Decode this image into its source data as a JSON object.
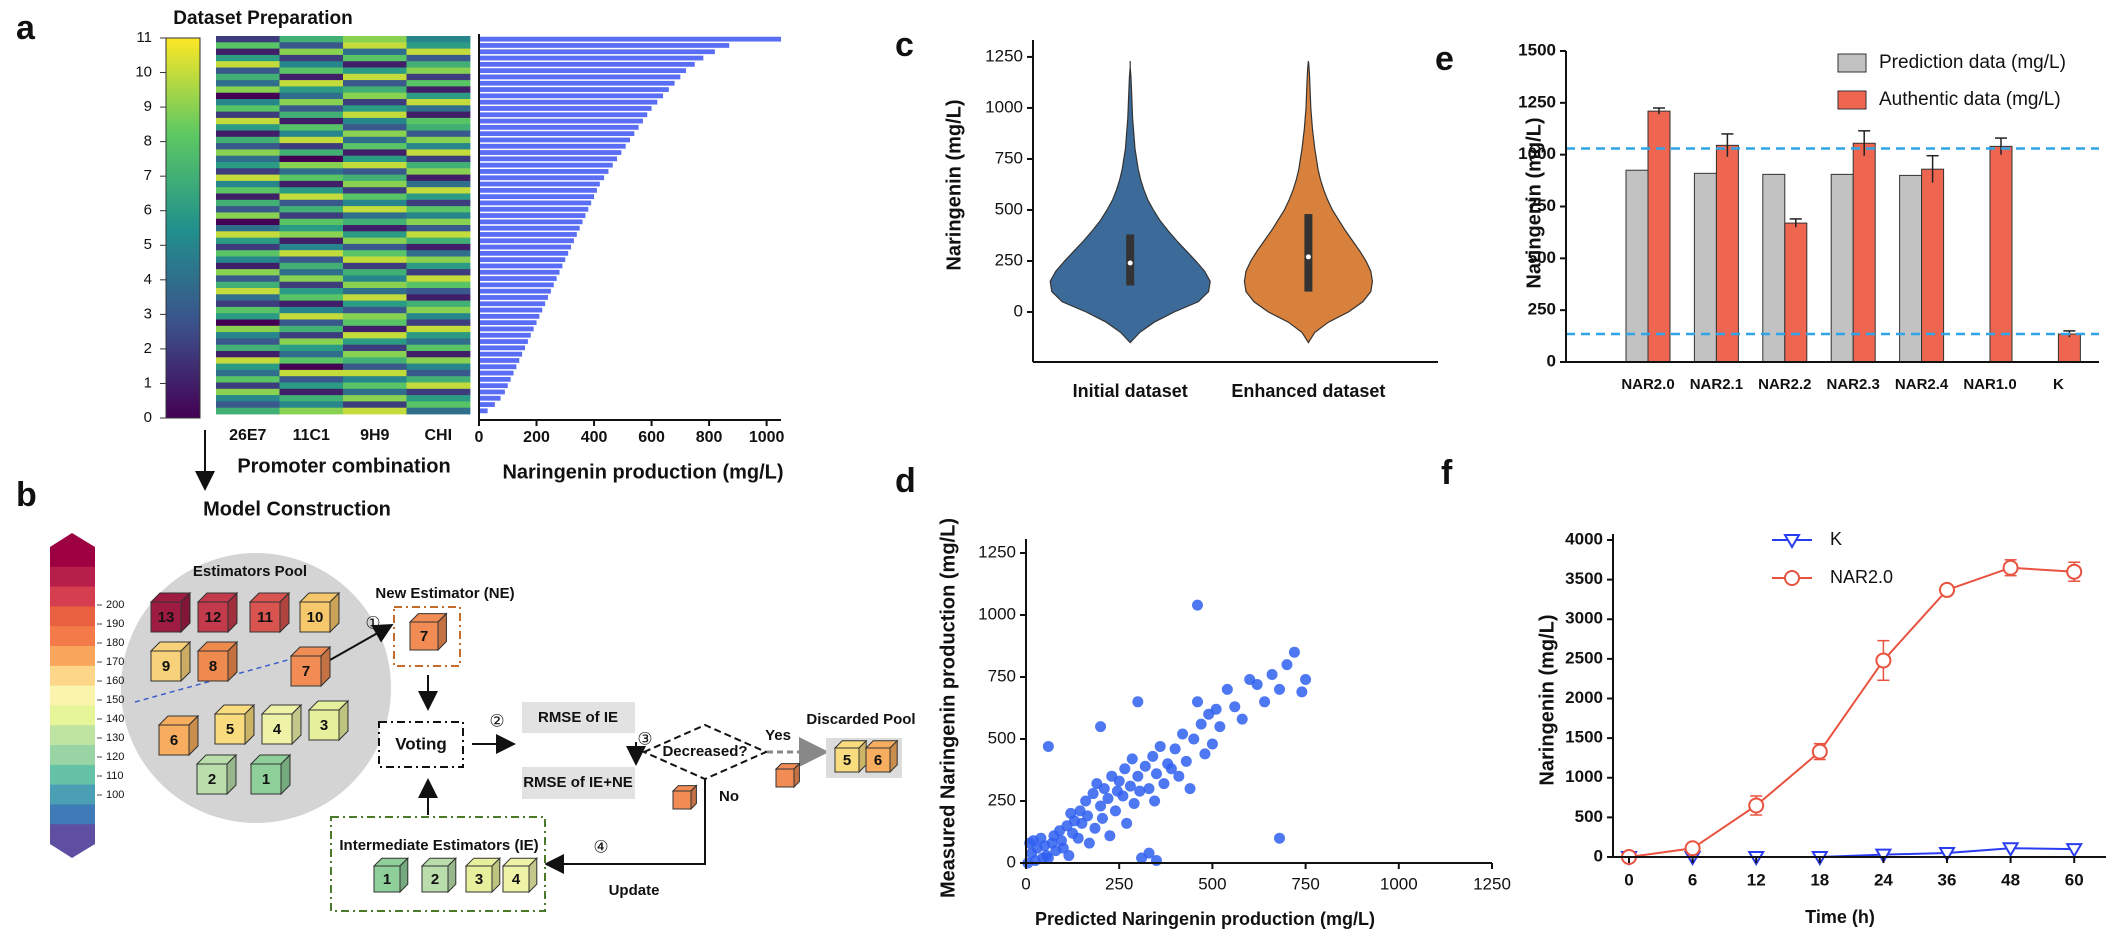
{
  "chart_data": [
    {
      "type": "heatmap",
      "panel": "a",
      "title": "Dataset Preparation",
      "xlabel": "Promoter combination",
      "columns": [
        "26E7",
        "11C1",
        "9H9",
        "CHI"
      ],
      "colormap": [
        "#440154",
        "#3b528b",
        "#21918c",
        "#5ec962",
        "#fde725"
      ],
      "clim": [
        0,
        11
      ],
      "cbar_ticks": [
        0,
        1,
        2,
        3,
        4,
        5,
        6,
        7,
        8,
        9,
        10,
        11
      ],
      "rows": [
        [
          2,
          7,
          9,
          5
        ],
        [
          8,
          3,
          10,
          6
        ],
        [
          1,
          9,
          4,
          10
        ],
        [
          6,
          2,
          8,
          3
        ],
        [
          10,
          5,
          1,
          7
        ],
        [
          3,
          8,
          6,
          9
        ],
        [
          7,
          1,
          10,
          2
        ],
        [
          4,
          10,
          3,
          8
        ],
        [
          9,
          6,
          7,
          1
        ],
        [
          0,
          4,
          9,
          6
        ],
        [
          5,
          9,
          2,
          10
        ],
        [
          8,
          3,
          6,
          4
        ],
        [
          2,
          7,
          10,
          1
        ],
        [
          10,
          1,
          5,
          8
        ],
        [
          6,
          8,
          3,
          7
        ],
        [
          1,
          5,
          9,
          3
        ],
        [
          7,
          10,
          4,
          9
        ],
        [
          3,
          2,
          8,
          5
        ],
        [
          9,
          7,
          1,
          10
        ],
        [
          4,
          0,
          6,
          2
        ],
        [
          6,
          9,
          10,
          7
        ],
        [
          2,
          4,
          3,
          9
        ],
        [
          10,
          8,
          7,
          1
        ],
        [
          5,
          1,
          9,
          4
        ],
        [
          8,
          6,
          2,
          10
        ],
        [
          1,
          10,
          8,
          6
        ],
        [
          7,
          3,
          5,
          2
        ],
        [
          3,
          7,
          10,
          8
        ],
        [
          9,
          2,
          4,
          5
        ],
        [
          0,
          8,
          7,
          9
        ],
        [
          4,
          6,
          1,
          3
        ],
        [
          10,
          9,
          6,
          10
        ],
        [
          6,
          1,
          9,
          7
        ],
        [
          2,
          5,
          3,
          1
        ],
        [
          8,
          10,
          8,
          4
        ],
        [
          5,
          3,
          10,
          9
        ],
        [
          1,
          7,
          2,
          6
        ],
        [
          9,
          4,
          7,
          2
        ],
        [
          3,
          9,
          5,
          10
        ],
        [
          7,
          2,
          9,
          8
        ],
        [
          10,
          6,
          4,
          3
        ],
        [
          4,
          8,
          10,
          1
        ],
        [
          2,
          1,
          6,
          7
        ],
        [
          8,
          5,
          3,
          9
        ],
        [
          6,
          10,
          9,
          5
        ],
        [
          0,
          3,
          8,
          2
        ],
        [
          9,
          7,
          1,
          10
        ],
        [
          5,
          2,
          10,
          6
        ],
        [
          3,
          9,
          6,
          4
        ],
        [
          7,
          6,
          2,
          8
        ],
        [
          1,
          4,
          9,
          1
        ],
        [
          10,
          8,
          7,
          9
        ],
        [
          6,
          0,
          3,
          5
        ],
        [
          4,
          10,
          10,
          3
        ],
        [
          8,
          3,
          5,
          7
        ],
        [
          2,
          6,
          8,
          10
        ],
        [
          9,
          1,
          4,
          2
        ],
        [
          5,
          7,
          9,
          6
        ],
        [
          3,
          5,
          2,
          8
        ],
        [
          7,
          9,
          10,
          4
        ]
      ]
    },
    {
      "type": "bar",
      "orientation": "horizontal",
      "xlabel": "Naringenin production (mg/L)",
      "color": "#5a6ef5",
      "xlim": [
        0,
        1050
      ],
      "xticks": [
        0,
        200,
        400,
        600,
        800,
        1000
      ],
      "values": [
        1050,
        870,
        820,
        780,
        750,
        720,
        700,
        680,
        660,
        640,
        620,
        600,
        585,
        570,
        555,
        540,
        525,
        510,
        495,
        480,
        465,
        450,
        435,
        420,
        410,
        400,
        390,
        380,
        370,
        360,
        350,
        340,
        330,
        320,
        310,
        300,
        290,
        280,
        270,
        260,
        250,
        240,
        230,
        220,
        210,
        200,
        190,
        180,
        170,
        160,
        150,
        140,
        130,
        120,
        110,
        100,
        90,
        75,
        55,
        30
      ]
    },
    {
      "type": "violin",
      "panel": "c",
      "ylabel": "Naringenin (mg/L)",
      "categories": [
        "Initial dataset",
        "Enhanced dataset"
      ],
      "ylim": [
        -245,
        1333
      ],
      "yticks": [
        0,
        250,
        500,
        750,
        1000,
        1250
      ],
      "density_y": [
        -150,
        -100,
        -50,
        0,
        50,
        100,
        150,
        200,
        250,
        300,
        350,
        400,
        450,
        500,
        550,
        600,
        650,
        700,
        750,
        800,
        850,
        900,
        950,
        1000,
        1050,
        1100,
        1150,
        1200,
        1230
      ],
      "violins": [
        {
          "color": "#3d6b99",
          "q1": 130,
          "median": 240,
          "q3": 380,
          "density": [
            0,
            0.12,
            0.3,
            0.55,
            0.85,
            0.98,
            1,
            0.93,
            0.82,
            0.7,
            0.58,
            0.47,
            0.37,
            0.29,
            0.22,
            0.17,
            0.13,
            0.1,
            0.08,
            0.06,
            0.05,
            0.04,
            0.03,
            0.025,
            0.02,
            0.015,
            0.01,
            0,
            0
          ]
        },
        {
          "color": "#d8813c",
          "q1": 100,
          "median": 270,
          "q3": 480,
          "density": [
            0,
            0.08,
            0.25,
            0.5,
            0.68,
            0.78,
            0.8,
            0.78,
            0.72,
            0.64,
            0.55,
            0.46,
            0.38,
            0.3,
            0.24,
            0.19,
            0.15,
            0.12,
            0.1,
            0.08,
            0.065,
            0.05,
            0.04,
            0.03,
            0.025,
            0.02,
            0.015,
            0.008,
            0
          ]
        }
      ]
    },
    {
      "type": "grouped-bar",
      "panel": "e",
      "ylabel": "Naringenin (mg/L)",
      "legend": "top-right",
      "categories": [
        "NAR2.0",
        "NAR2.1",
        "NAR2.2",
        "NAR2.3",
        "NAR2.4",
        "NAR1.0",
        "K"
      ],
      "ylim": [
        0,
        1500
      ],
      "yticks": [
        0,
        250,
        500,
        750,
        1000,
        1250,
        1500
      ],
      "hlines": [
        1030,
        135
      ],
      "hline_color": "#2fa4e7",
      "series": [
        {
          "name": "Prediction data (mg/L)",
          "color": "#c2c2c2",
          "values": [
            925,
            910,
            905,
            905,
            900,
            null,
            null
          ]
        },
        {
          "name": "Authentic data (mg/L)",
          "color": "#ee6550",
          "values": [
            1210,
            1045,
            670,
            1055,
            930,
            1040,
            135
          ],
          "errors": [
            15,
            55,
            20,
            60,
            65,
            40,
            15
          ]
        }
      ]
    },
    {
      "type": "scatter",
      "panel": "d",
      "xlabel": "Predicted Naringenin production (mg/L)",
      "ylabel": "Measured Naringenin production (mg/L)",
      "color": "#2f5ff0",
      "xlim": [
        0,
        1250
      ],
      "ylim": [
        0,
        1250
      ],
      "xticks": [
        0,
        250,
        500,
        750,
        1000,
        1250
      ],
      "yticks": [
        0,
        250,
        500,
        750,
        1000,
        1250
      ],
      "x": [
        5,
        10,
        15,
        20,
        25,
        30,
        40,
        45,
        50,
        55,
        60,
        70,
        75,
        80,
        90,
        95,
        100,
        110,
        115,
        120,
        125,
        130,
        140,
        145,
        150,
        160,
        165,
        170,
        180,
        185,
        190,
        200,
        205,
        210,
        220,
        225,
        230,
        240,
        245,
        250,
        260,
        265,
        270,
        280,
        285,
        290,
        300,
        305,
        310,
        320,
        330,
        340,
        345,
        350,
        360,
        370,
        380,
        390,
        400,
        410,
        420,
        430,
        440,
        450,
        460,
        470,
        480,
        490,
        500,
        510,
        520,
        540,
        560,
        580,
        600,
        620,
        640,
        660,
        680,
        700,
        720,
        740,
        750,
        60,
        330,
        350,
        460,
        680,
        300,
        200
      ],
      "y": [
        0,
        80,
        40,
        90,
        10,
        60,
        100,
        20,
        70,
        30,
        20,
        80,
        110,
        50,
        130,
        90,
        60,
        150,
        30,
        200,
        120,
        170,
        100,
        210,
        160,
        250,
        190,
        80,
        280,
        140,
        320,
        230,
        180,
        300,
        260,
        110,
        350,
        210,
        290,
        330,
        270,
        380,
        160,
        310,
        420,
        240,
        350,
        290,
        20,
        390,
        300,
        430,
        250,
        360,
        470,
        320,
        400,
        380,
        460,
        350,
        520,
        410,
        300,
        500,
        650,
        560,
        440,
        600,
        480,
        620,
        550,
        700,
        630,
        580,
        740,
        720,
        650,
        760,
        700,
        800,
        850,
        690,
        740,
        470,
        40,
        10,
        1040,
        100,
        650,
        550
      ]
    },
    {
      "type": "line",
      "panel": "f",
      "xlabel": "Time (h)",
      "ylabel": "Naringenin (mg/L)",
      "legend": "top-left",
      "categories": [
        "0",
        "6",
        "12",
        "18",
        "24",
        "36",
        "48",
        "60"
      ],
      "ylim": [
        0,
        4000
      ],
      "yticks": [
        0,
        500,
        1000,
        1500,
        2000,
        2500,
        3000,
        3500,
        4000
      ],
      "series": [
        {
          "name": "K",
          "color": "#2a3cf0",
          "marker": "triangle-down",
          "values": [
            0,
            0,
            0,
            0,
            30,
            50,
            110,
            100
          ]
        },
        {
          "name": "NAR2.0",
          "color": "#e8523f",
          "marker": "circle",
          "values": [
            0,
            110,
            650,
            1330,
            2480,
            3370,
            3650,
            3600
          ],
          "errors": [
            0,
            20,
            120,
            100,
            250,
            60,
            100,
            120
          ]
        }
      ]
    }
  ],
  "diagram": {
    "panel": "b",
    "title": "Model Construction",
    "pool_title": "Estimators Pool",
    "pool": [
      "13",
      "12",
      "11",
      "10",
      "9",
      "8",
      "7",
      "6",
      "5",
      "4",
      "3",
      "2",
      "1"
    ],
    "new_estimator": "New Estimator (NE)",
    "ne_cube": "7",
    "voting": "Voting",
    "rmse_ie": "RMSE of IE",
    "rmse_ie_ne": "RMSE of IE+NE",
    "decision": "Decreased?",
    "yes": "Yes",
    "no": "No",
    "discarded_title": "Discarded Pool",
    "discarded": [
      "5",
      "6"
    ],
    "ie_title": "Intermediate Estimators (IE)",
    "ie": [
      "1",
      "2",
      "3",
      "4"
    ],
    "update": "Update",
    "steps": [
      "①",
      "②",
      "③",
      "④"
    ],
    "scale_ticks": [
      200,
      190,
      180,
      170,
      160,
      150,
      140,
      130,
      120,
      110,
      100
    ]
  }
}
